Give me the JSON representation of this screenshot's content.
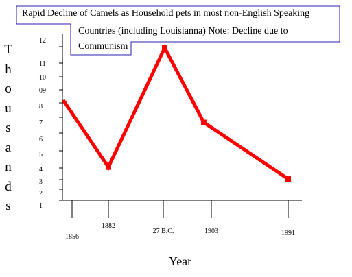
{
  "chart_data": {
    "type": "line",
    "title_lines": [
      "Rapid Decline of Camels as Household pets in most non-English Speaking",
      "Countries (including Louisianna) Note: Decline due to",
      "Communism"
    ],
    "xlabel": "Year",
    "ylabel": "Thousands",
    "categories": [
      "1856",
      "1882",
      "27 B.C.",
      "1903",
      "1991"
    ],
    "values": [
      8,
      3.5,
      11.5,
      6.5,
      2.7
    ],
    "y_tick_labels": [
      "1",
      "2",
      "3",
      "4",
      "5",
      "6",
      "7",
      "8",
      "09",
      "10",
      "11",
      "12"
    ],
    "ylim": [
      1,
      12
    ],
    "line_color": "#ff0000",
    "grid": false,
    "legend": "none"
  }
}
